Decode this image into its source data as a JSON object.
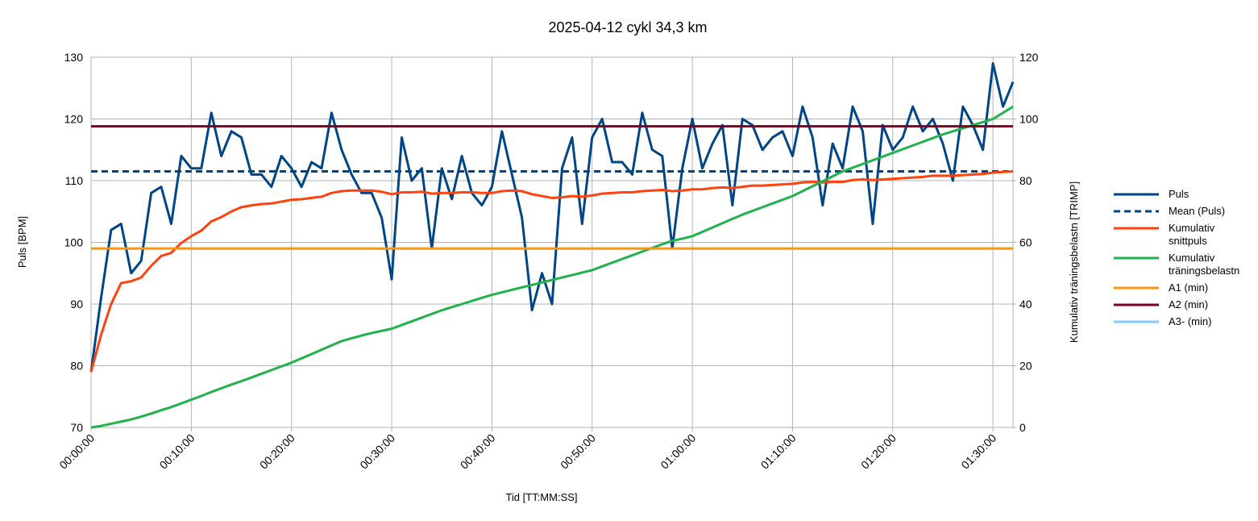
{
  "chart_data": {
    "type": "line",
    "title": "2025-04-12 cykl 34,3 km",
    "xlabel": "Tid [TT:MM:SS]",
    "ylabel": "Puls [BPM]",
    "y2label": "Kumulativ träningsbelastn [TRIMP]",
    "x": [
      0,
      1,
      2,
      3,
      4,
      5,
      6,
      7,
      8,
      9,
      10,
      11,
      12,
      13,
      14,
      15,
      16,
      17,
      18,
      19,
      20,
      21,
      22,
      23,
      24,
      25,
      26,
      27,
      28,
      29,
      30,
      31,
      32,
      33,
      34,
      35,
      36,
      37,
      38,
      39,
      40,
      41,
      42,
      43,
      44,
      45,
      46,
      47,
      48,
      49,
      50,
      51,
      52,
      53,
      54,
      55,
      56,
      57,
      58,
      59,
      60,
      61,
      62,
      63,
      64,
      65,
      66,
      67,
      68,
      69,
      70,
      71,
      72,
      73,
      74,
      75,
      76,
      77,
      78,
      79,
      80,
      81,
      82,
      83,
      84,
      85,
      86,
      87,
      88,
      89,
      90,
      91,
      92
    ],
    "xlim": [
      0,
      92
    ],
    "xticks": [
      {
        "value": 0,
        "label": "00:00:00"
      },
      {
        "value": 10,
        "label": "00:10:00"
      },
      {
        "value": 20,
        "label": "00:20:00"
      },
      {
        "value": 30,
        "label": "00:30:00"
      },
      {
        "value": 40,
        "label": "00:40:00"
      },
      {
        "value": 50,
        "label": "00:50:00"
      },
      {
        "value": 60,
        "label": "01:00:00"
      },
      {
        "value": 70,
        "label": "01:10:00"
      },
      {
        "value": 80,
        "label": "01:20:00"
      },
      {
        "value": 90,
        "label": "01:30:00"
      }
    ],
    "ylim": [
      70,
      130
    ],
    "yticks": [
      70,
      80,
      90,
      100,
      110,
      120,
      130
    ],
    "y2lim": [
      0,
      120
    ],
    "y2ticks": [
      0,
      20,
      40,
      60,
      80,
      100,
      120
    ],
    "grid": true,
    "legend": "right",
    "series": [
      {
        "name": "Puls",
        "color": "#004586",
        "values": [
          79,
          91,
          102,
          103,
          95,
          97,
          108,
          109,
          103,
          114,
          112,
          112,
          121,
          114,
          118,
          117,
          111,
          111,
          109,
          114,
          112,
          109,
          113,
          112,
          121,
          115,
          111,
          108,
          108,
          104,
          94,
          117,
          110,
          112,
          99,
          112,
          107,
          114,
          108,
          106,
          109,
          118,
          111,
          104,
          89,
          95,
          90,
          112,
          117,
          103,
          117,
          120,
          113,
          113,
          111,
          121,
          115,
          114,
          99,
          112,
          120,
          112,
          116,
          119,
          106,
          120,
          119,
          115,
          117,
          118,
          114,
          122,
          117,
          106,
          116,
          112,
          122,
          118,
          103,
          119,
          115,
          117,
          122,
          118,
          120,
          116,
          110,
          122,
          119,
          115,
          129,
          122,
          126
        ]
      },
      {
        "name": "Mean (Puls)",
        "color": "#004586",
        "dash": true,
        "value": 111.5
      },
      {
        "name": "Kumulativ snittpuls",
        "color": "#ff420e",
        "values": [
          79,
          85,
          90,
          93.4,
          93.7,
          94.3,
          96.2,
          97.8,
          98.3,
          99.9,
          101,
          101.9,
          103.4,
          104.1,
          105,
          105.7,
          106,
          106.2,
          106.3,
          106.6,
          106.9,
          107,
          107.2,
          107.4,
          108,
          108.3,
          108.4,
          108.4,
          108.4,
          108.2,
          107.8,
          108.1,
          108.1,
          108.2,
          107.9,
          108,
          108,
          108.1,
          108.1,
          108,
          108,
          108.3,
          108.4,
          108.3,
          107.8,
          107.5,
          107.2,
          107.3,
          107.5,
          107.4,
          107.6,
          107.9,
          108,
          108.1,
          108.1,
          108.3,
          108.4,
          108.5,
          108.3,
          108.4,
          108.6,
          108.6,
          108.8,
          108.9,
          108.8,
          109,
          109.2,
          109.2,
          109.3,
          109.4,
          109.5,
          109.7,
          109.8,
          109.7,
          109.8,
          109.8,
          110.1,
          110.2,
          110.1,
          110.2,
          110.3,
          110.4,
          110.5,
          110.6,
          110.8,
          110.8,
          110.8,
          110.9,
          111,
          111.1,
          111.3,
          111.4,
          111.5
        ]
      },
      {
        "name": "Kumulativ träningsbelastn",
        "color": "#21b24b",
        "axis": "y2",
        "values": [
          0,
          0.5,
          1.2,
          1.9,
          2.6,
          3.5,
          4.5,
          5.6,
          6.6,
          7.8,
          9,
          10.2,
          11.5,
          12.7,
          13.9,
          15,
          16.2,
          17.4,
          18.6,
          19.8,
          21,
          22.4,
          23.8,
          25.2,
          26.6,
          28,
          28.9,
          29.8,
          30.6,
          31.3,
          32,
          33.2,
          34.4,
          35.6,
          36.8,
          38,
          39,
          40,
          41,
          42,
          43,
          43.8,
          44.6,
          45.4,
          46.2,
          47,
          47.8,
          48.6,
          49.4,
          50.2,
          51,
          52.2,
          53.4,
          54.6,
          55.8,
          57,
          58.2,
          59.4,
          60.5,
          61.2,
          62,
          63.4,
          64.8,
          66.2,
          67.6,
          69,
          70.2,
          71.4,
          72.6,
          73.8,
          75,
          76.6,
          78.2,
          79.8,
          81.4,
          83,
          84.2,
          85.4,
          86.6,
          87.8,
          89,
          90.2,
          91.4,
          92.6,
          93.8,
          95,
          96,
          97,
          98,
          99,
          100,
          102,
          104
        ]
      },
      {
        "name": "A1 (min)",
        "color": "#ff950e",
        "value": 99
      },
      {
        "name": "A2 (min)",
        "color": "#7e0021",
        "value": 118.8
      },
      {
        "name": "A3- (min)",
        "color": "#83caff"
      }
    ]
  }
}
